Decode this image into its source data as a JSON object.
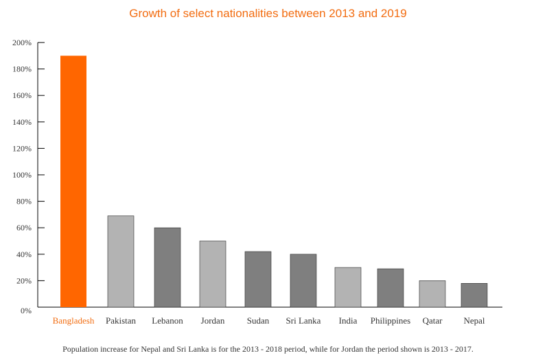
{
  "chart_data": {
    "type": "bar",
    "title": "Growth of select nationalities between 2013 and 2019",
    "categories": [
      "Bangladesh",
      "Pakistan",
      "Lebanon",
      "Jordan",
      "Sudan",
      "Sri Lanka",
      "India",
      "Philippines",
      "Qatar",
      "Nepal"
    ],
    "values": [
      190,
      69,
      60,
      50,
      42,
      40,
      30,
      29,
      20,
      18
    ],
    "value_unit": "%",
    "ylim": [
      0,
      200
    ],
    "yticks": [
      0,
      20,
      40,
      60,
      80,
      100,
      120,
      140,
      160,
      180,
      200
    ],
    "ytick_labels": [
      "0%",
      "20%",
      "40%",
      "60%",
      "80%",
      "100%",
      "120%",
      "140%",
      "160%",
      "180%",
      "200%"
    ],
    "xlabel": "",
    "ylabel": "",
    "grid": false,
    "highlight_index": 0,
    "colors": {
      "highlight": "#ff6600",
      "highlight_label": "#f26c10",
      "light": "#b3b3b3",
      "dark": "#7f7f7f"
    },
    "bar_shades": [
      "highlight",
      "light",
      "dark",
      "light",
      "dark",
      "dark",
      "light",
      "dark",
      "light",
      "dark"
    ]
  },
  "footnote": "Population increase for Nepal and Sri Lanka is for the 2013 - 2018 period, while for Jordan the period shown is 2013 - 2017."
}
